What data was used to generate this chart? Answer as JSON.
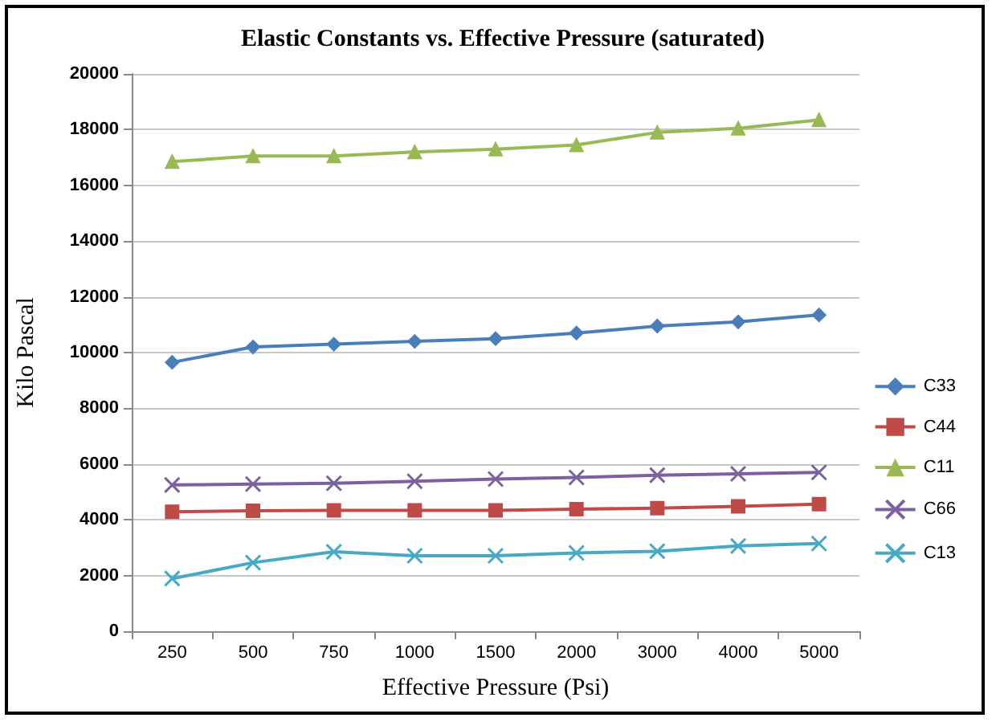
{
  "chart_data": {
    "type": "line",
    "title": "Elastic Constants vs. Effective Pressure (saturated)",
    "xlabel": "Effective Pressure (Psi)",
    "ylabel": "Kilo Pascal",
    "categories": [
      "250",
      "500",
      "750",
      "1000",
      "1500",
      "2000",
      "3000",
      "4000",
      "5000"
    ],
    "ylim": [
      0,
      20000
    ],
    "yticks": [
      0,
      2000,
      4000,
      6000,
      8000,
      10000,
      12000,
      14000,
      16000,
      18000,
      20000
    ],
    "grid": "y",
    "legend": "right",
    "series": [
      {
        "name": "C33",
        "color": "#4a7ebb",
        "marker": "diamond",
        "values": [
          9650,
          10200,
          10300,
          10400,
          10500,
          10700,
          10950,
          11100,
          11350
        ]
      },
      {
        "name": "C44",
        "color": "#be4b48",
        "marker": "square",
        "values": [
          4290,
          4320,
          4340,
          4340,
          4340,
          4380,
          4420,
          4480,
          4560
        ]
      },
      {
        "name": "C11",
        "color": "#98b954",
        "marker": "triangle",
        "values": [
          16850,
          17050,
          17050,
          17200,
          17300,
          17450,
          17900,
          18050,
          18350
        ]
      },
      {
        "name": "C66",
        "color": "#7d60a0",
        "marker": "cross",
        "values": [
          5250,
          5280,
          5310,
          5380,
          5460,
          5520,
          5600,
          5650,
          5700
        ]
      },
      {
        "name": "C13",
        "color": "#46aac5",
        "marker": "cross",
        "values": [
          1890,
          2460,
          2850,
          2710,
          2710,
          2810,
          2870,
          3060,
          3150
        ]
      }
    ]
  }
}
